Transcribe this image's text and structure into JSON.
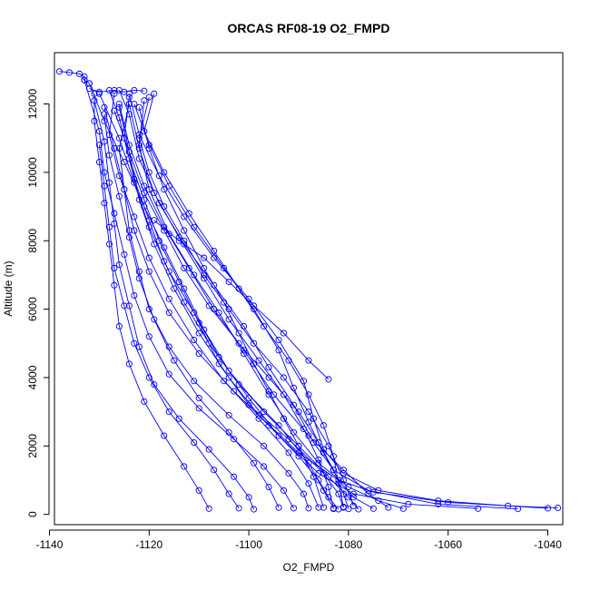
{
  "chart_data": {
    "type": "line",
    "title": "ORCAS RF08-19 O2_FMPD",
    "xlabel": "O2_FMPD",
    "ylabel": "Altitude (m)",
    "xlim": [
      -1139,
      -1037
    ],
    "ylim": [
      -300,
      13500
    ],
    "xticks": [
      -1140,
      -1120,
      -1100,
      -1080,
      -1060,
      -1040
    ],
    "yticks": [
      0,
      2000,
      4000,
      6000,
      8000,
      10000,
      12000
    ],
    "series_color": "#0000ff",
    "marker": "open-circle",
    "profiles": [
      [
        [
          -1081,
          200
        ],
        [
          -1082,
          600
        ],
        [
          -1085,
          1200
        ],
        [
          -1092,
          2200
        ],
        [
          -1100,
          3200
        ],
        [
          -1106,
          4400
        ],
        [
          -1110,
          5600
        ],
        [
          -1114,
          6800
        ],
        [
          -1118,
          8000
        ],
        [
          -1121,
          9200
        ],
        [
          -1124,
          10400
        ],
        [
          -1126,
          11600
        ],
        [
          -1128,
          12400
        ]
      ],
      [
        [
          -1078,
          150
        ],
        [
          -1080,
          500
        ],
        [
          -1084,
          1100
        ],
        [
          -1090,
          2000
        ],
        [
          -1097,
          3000
        ],
        [
          -1104,
          4200
        ],
        [
          -1109,
          5400
        ],
        [
          -1113,
          6600
        ],
        [
          -1117,
          7800
        ],
        [
          -1121,
          9000
        ],
        [
          -1125,
          10300
        ],
        [
          -1129,
          11500
        ],
        [
          -1132,
          12600
        ]
      ],
      [
        [
          -1083,
          180
        ],
        [
          -1085,
          700
        ],
        [
          -1088,
          1500
        ],
        [
          -1094,
          2600
        ],
        [
          -1102,
          3800
        ],
        [
          -1108,
          5000
        ],
        [
          -1113,
          6200
        ],
        [
          -1117,
          7400
        ],
        [
          -1120,
          8600
        ],
        [
          -1123,
          9800
        ],
        [
          -1125,
          11000
        ],
        [
          -1124,
          12200
        ]
      ],
      [
        [
          -1040,
          180
        ],
        [
          -1060,
          350
        ],
        [
          -1075,
          650
        ],
        [
          -1082,
          1000
        ],
        [
          -1090,
          1800
        ],
        [
          -1098,
          2900
        ],
        [
          -1104,
          4000
        ],
        [
          -1110,
          5300
        ],
        [
          -1115,
          6600
        ],
        [
          -1119,
          7900
        ],
        [
          -1122,
          9200
        ],
        [
          -1124,
          10600
        ],
        [
          -1126,
          11900
        ]
      ],
      [
        [
          -1054,
          170
        ],
        [
          -1068,
          300
        ],
        [
          -1079,
          600
        ],
        [
          -1086,
          1200
        ],
        [
          -1094,
          2300
        ],
        [
          -1100,
          3400
        ],
        [
          -1106,
          4600
        ],
        [
          -1111,
          5900
        ],
        [
          -1116,
          7100
        ],
        [
          -1120,
          8400
        ],
        [
          -1123,
          9700
        ],
        [
          -1126,
          11000
        ],
        [
          -1130,
          12300
        ]
      ],
      [
        [
          -1083,
          160
        ],
        [
          -1084,
          800
        ],
        [
          -1086,
          1600
        ],
        [
          -1089,
          2500
        ],
        [
          -1093,
          3500
        ],
        [
          -1098,
          4500
        ],
        [
          -1104,
          5700
        ],
        [
          -1109,
          6900
        ],
        [
          -1114,
          8100
        ],
        [
          -1119,
          9400
        ],
        [
          -1122,
          10700
        ],
        [
          -1124,
          12000
        ]
      ],
      [
        [
          -1086,
          200
        ],
        [
          -1088,
          900
        ],
        [
          -1092,
          1800
        ],
        [
          -1098,
          2800
        ],
        [
          -1105,
          3900
        ],
        [
          -1111,
          5100
        ],
        [
          -1116,
          6300
        ],
        [
          -1120,
          7500
        ],
        [
          -1123,
          8700
        ],
        [
          -1126,
          9900
        ],
        [
          -1128,
          11100
        ],
        [
          -1127,
          12300
        ]
      ],
      [
        [
          -1069,
          170
        ],
        [
          -1074,
          400
        ],
        [
          -1080,
          800
        ],
        [
          -1086,
          1500
        ],
        [
          -1091,
          2400
        ],
        [
          -1096,
          3500
        ],
        [
          -1101,
          4700
        ],
        [
          -1106,
          5900
        ],
        [
          -1111,
          7000
        ],
        [
          -1116,
          8200
        ],
        [
          -1120,
          9500
        ],
        [
          -1122,
          10800
        ],
        [
          -1121,
          12100
        ]
      ],
      [
        [
          -1091,
          180
        ],
        [
          -1093,
          700
        ],
        [
          -1097,
          1400
        ],
        [
          -1103,
          2200
        ],
        [
          -1110,
          3100
        ],
        [
          -1116,
          4100
        ],
        [
          -1120,
          5200
        ],
        [
          -1123,
          6400
        ],
        [
          -1125,
          7600
        ],
        [
          -1127,
          8800
        ],
        [
          -1129,
          10000
        ],
        [
          -1130,
          11200
        ],
        [
          -1133,
          12700
        ]
      ],
      [
        [
          -1099,
          150
        ],
        [
          -1100,
          500
        ],
        [
          -1103,
          1100
        ],
        [
          -1108,
          1900
        ],
        [
          -1114,
          2800
        ],
        [
          -1119,
          3800
        ],
        [
          -1122,
          4900
        ],
        [
          -1124,
          6100
        ],
        [
          -1126,
          7300
        ],
        [
          -1127,
          8500
        ],
        [
          -1128,
          9700
        ],
        [
          -1129,
          10900
        ],
        [
          -1131,
          12100
        ]
      ],
      [
        [
          -1085,
          200
        ],
        [
          -1087,
          1100
        ],
        [
          -1090,
          2000
        ],
        [
          -1093,
          2800
        ],
        [
          -1096,
          3600
        ],
        [
          -1099,
          4400
        ],
        [
          -1102,
          5300
        ],
        [
          -1105,
          6200
        ],
        [
          -1109,
          7200
        ],
        [
          -1113,
          8300
        ],
        [
          -1117,
          9500
        ],
        [
          -1120,
          10700
        ],
        [
          -1122,
          11900
        ]
      ],
      [
        [
          -1080,
          160
        ],
        [
          -1081,
          600
        ],
        [
          -1083,
          1300
        ],
        [
          -1086,
          2100
        ],
        [
          -1090,
          3000
        ],
        [
          -1096,
          4000
        ],
        [
          -1102,
          5000
        ],
        [
          -1108,
          6100
        ],
        [
          -1113,
          7200
        ],
        [
          -1117,
          8300
        ],
        [
          -1121,
          9400
        ],
        [
          -1124,
          10600
        ],
        [
          -1127,
          11800
        ]
      ],
      [
        [
          -1108,
          170
        ],
        [
          -1110,
          700
        ],
        [
          -1113,
          1400
        ],
        [
          -1117,
          2300
        ],
        [
          -1121,
          3300
        ],
        [
          -1124,
          4400
        ],
        [
          -1126,
          5500
        ],
        [
          -1127,
          6700
        ],
        [
          -1128,
          7900
        ],
        [
          -1129,
          9100
        ],
        [
          -1130,
          10300
        ],
        [
          -1131,
          11500
        ],
        [
          -1131,
          12300
        ]
      ],
      [
        [
          -1072,
          200
        ],
        [
          -1076,
          600
        ],
        [
          -1081,
          1300
        ],
        [
          -1088,
          2300
        ],
        [
          -1095,
          3500
        ],
        [
          -1101,
          4800
        ],
        [
          -1107,
          6000
        ],
        [
          -1112,
          7200
        ],
        [
          -1117,
          8400
        ],
        [
          -1121,
          9600
        ],
        [
          -1124,
          10800
        ],
        [
          -1126,
          12000
        ]
      ],
      [
        [
          -1046,
          160
        ],
        [
          -1062,
          300
        ],
        [
          -1076,
          700
        ],
        [
          -1083,
          1300
        ],
        [
          -1087,
          2100
        ],
        [
          -1091,
          3200
        ],
        [
          -1096,
          4300
        ],
        [
          -1101,
          5500
        ],
        [
          -1107,
          6700
        ],
        [
          -1113,
          7900
        ],
        [
          -1118,
          9100
        ],
        [
          -1122,
          10400
        ],
        [
          -1124,
          11700
        ],
        [
          -1126,
          12400
        ]
      ],
      [
        [
          -1088,
          180
        ],
        [
          -1089,
          600
        ],
        [
          -1092,
          1200
        ],
        [
          -1097,
          2000
        ],
        [
          -1104,
          2900
        ],
        [
          -1111,
          3900
        ],
        [
          -1116,
          4900
        ],
        [
          -1120,
          6000
        ],
        [
          -1122,
          7100
        ],
        [
          -1124,
          8300
        ],
        [
          -1125,
          9500
        ],
        [
          -1126,
          10700
        ],
        [
          -1124,
          12000
        ]
      ],
      [
        [
          -1081,
          220
        ],
        [
          -1082,
          900
        ],
        [
          -1083,
          1700
        ],
        [
          -1085,
          2600
        ],
        [
          -1088,
          3500
        ],
        [
          -1092,
          4500
        ],
        [
          -1097,
          5500
        ],
        [
          -1102,
          6600
        ],
        [
          -1107,
          7700
        ],
        [
          -1112,
          8800
        ],
        [
          -1117,
          10000
        ],
        [
          -1121,
          11200
        ],
        [
          -1119,
          12300
        ]
      ],
      [
        [
          -1094,
          200
        ],
        [
          -1096,
          800
        ],
        [
          -1099,
          1500
        ],
        [
          -1104,
          2400
        ],
        [
          -1110,
          3400
        ],
        [
          -1115,
          4500
        ],
        [
          -1119,
          5700
        ],
        [
          -1122,
          6900
        ],
        [
          -1124,
          8100
        ],
        [
          -1126,
          9300
        ],
        [
          -1128,
          10500
        ],
        [
          -1129,
          11700
        ]
      ],
      [
        [
          -1075,
          170
        ],
        [
          -1079,
          500
        ],
        [
          -1082,
          1000
        ],
        [
          -1085,
          1800
        ],
        [
          -1088,
          2700
        ],
        [
          -1091,
          3700
        ],
        [
          -1094,
          4800
        ],
        [
          -1099,
          6000
        ],
        [
          -1105,
          7200
        ],
        [
          -1111,
          8400
        ],
        [
          -1116,
          9600
        ],
        [
          -1120,
          10800
        ],
        [
          -1123,
          12000
        ]
      ],
      [
        [
          -1038,
          190
        ],
        [
          -1048,
          250
        ],
        [
          -1062,
          400
        ],
        [
          -1074,
          700
        ],
        [
          -1081,
          1200
        ],
        [
          -1085,
          1900
        ],
        [
          -1087,
          2800
        ],
        [
          -1089,
          3900
        ],
        [
          -1094,
          5100
        ],
        [
          -1100,
          6300
        ],
        [
          -1107,
          7500
        ],
        [
          -1113,
          8700
        ],
        [
          -1118,
          9900
        ],
        [
          -1122,
          11100
        ],
        [
          -1124,
          12300
        ]
      ],
      [
        [
          -1082,
          150
        ],
        [
          -1084,
          500
        ],
        [
          -1086,
          1000
        ],
        [
          -1090,
          1700
        ],
        [
          -1096,
          2600
        ],
        [
          -1103,
          3600
        ],
        [
          -1110,
          4700
        ],
        [
          -1116,
          5900
        ],
        [
          -1120,
          7100
        ],
        [
          -1123,
          8300
        ],
        [
          -1125,
          9500
        ],
        [
          -1127,
          10700
        ],
        [
          -1129,
          11900
        ]
      ],
      [
        [
          -1084,
          3950
        ],
        [
          -1088,
          4500
        ],
        [
          -1093,
          5300
        ],
        [
          -1099,
          6100
        ],
        [
          -1104,
          6800
        ],
        [
          -1109,
          7500
        ],
        [
          -1114,
          8000
        ],
        [
          -1119,
          8600
        ]
      ],
      [
        [
          -1102,
          180
        ],
        [
          -1104,
          600
        ],
        [
          -1107,
          1300
        ],
        [
          -1111,
          2100
        ],
        [
          -1116,
          3000
        ],
        [
          -1120,
          4000
        ],
        [
          -1123,
          5000
        ],
        [
          -1125,
          6100
        ],
        [
          -1127,
          7200
        ],
        [
          -1128,
          8400
        ],
        [
          -1129,
          9600
        ],
        [
          -1130,
          10800
        ]
      ],
      [
        [
          -1079,
          250
        ],
        [
          -1081,
          1000
        ],
        [
          -1084,
          2000
        ],
        [
          -1088,
          3000
        ],
        [
          -1093,
          4000
        ],
        [
          -1099,
          5000
        ],
        [
          -1104,
          6000
        ],
        [
          -1109,
          7000
        ],
        [
          -1113,
          8000
        ],
        [
          -1117,
          9000
        ],
        [
          -1120,
          10000
        ],
        [
          -1122,
          11000
        ],
        [
          -1120,
          12200
        ]
      ],
      [
        [
          -1138,
          12950
        ],
        [
          -1136,
          12920
        ],
        [
          -1134,
          12880
        ],
        [
          -1133,
          12800
        ],
        [
          -1133,
          12700
        ],
        [
          -1132,
          12600
        ]
      ],
      [
        [
          -1132,
          12450
        ],
        [
          -1130,
          12350
        ],
        [
          -1127,
          12400
        ],
        [
          -1125,
          12350
        ],
        [
          -1123,
          12400
        ],
        [
          -1121,
          12380
        ]
      ]
    ]
  }
}
